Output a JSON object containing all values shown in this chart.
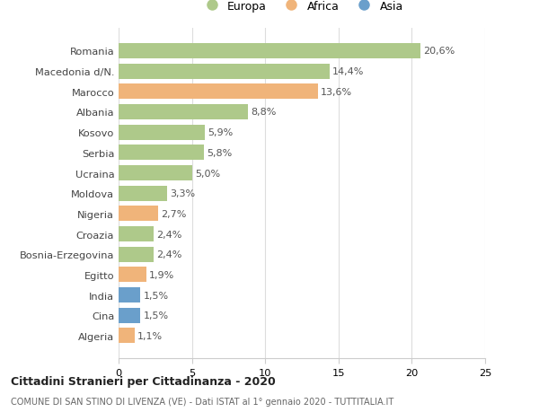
{
  "categories": [
    "Romania",
    "Macedonia d/N.",
    "Marocco",
    "Albania",
    "Kosovo",
    "Serbia",
    "Ucraina",
    "Moldova",
    "Nigeria",
    "Croazia",
    "Bosnia-Erzegovina",
    "Egitto",
    "India",
    "Cina",
    "Algeria"
  ],
  "values": [
    20.6,
    14.4,
    13.6,
    8.8,
    5.9,
    5.8,
    5.0,
    3.3,
    2.7,
    2.4,
    2.4,
    1.9,
    1.5,
    1.5,
    1.1
  ],
  "labels": [
    "20,6%",
    "14,4%",
    "13,6%",
    "8,8%",
    "5,9%",
    "5,8%",
    "5,0%",
    "3,3%",
    "2,7%",
    "2,4%",
    "2,4%",
    "1,9%",
    "1,5%",
    "1,5%",
    "1,1%"
  ],
  "continent": [
    "Europa",
    "Europa",
    "Africa",
    "Europa",
    "Europa",
    "Europa",
    "Europa",
    "Europa",
    "Africa",
    "Europa",
    "Europa",
    "Africa",
    "Asia",
    "Asia",
    "Africa"
  ],
  "colors": {
    "Europa": "#aec98a",
    "Africa": "#f0b47a",
    "Asia": "#6a9fcb"
  },
  "xlim": [
    0,
    25
  ],
  "xticks": [
    0,
    5,
    10,
    15,
    20,
    25
  ],
  "title1": "Cittadini Stranieri per Cittadinanza - 2020",
  "title2": "COMUNE DI SAN STINO DI LIVENZA (VE) - Dati ISTAT al 1° gennaio 2020 - TUTTITALIA.IT",
  "background_color": "#ffffff",
  "bar_height": 0.75
}
